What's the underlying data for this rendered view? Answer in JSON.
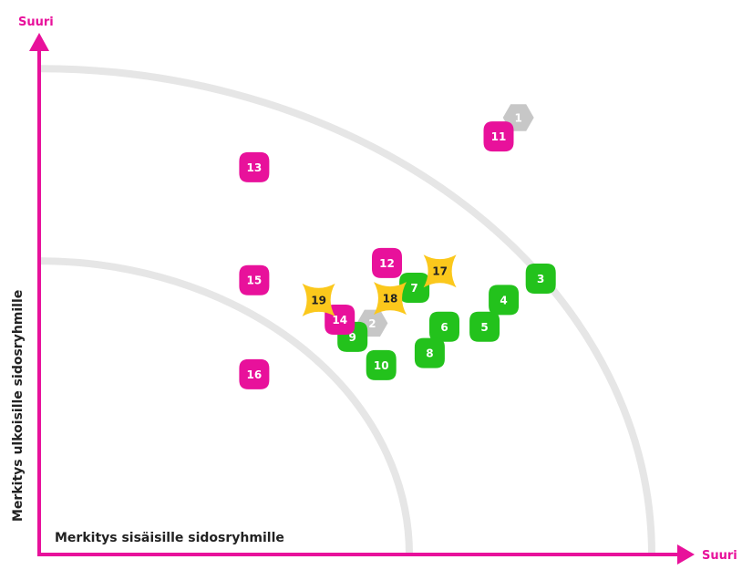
{
  "colors": {
    "axis": "#e8119b",
    "arc": "#e6e6e6",
    "magenta": "#e8119b",
    "green": "#23c21c",
    "gray": "#c7c7c7",
    "yellow": "#fbc81c",
    "text_dark": "#222222",
    "text_light": "#ffffff"
  },
  "chart_data": {
    "type": "scatter",
    "xlabel": "Merkitys sisäisille sidosryhmille",
    "ylabel": "Merkitys ulkoisille sidosryhmille",
    "x_end_label": "Suuri",
    "y_end_label": "Suuri",
    "xlim": [
      0,
      100
    ],
    "ylim": [
      0,
      100
    ],
    "arcs": [
      58,
      96
    ],
    "grid": false,
    "legend": "none",
    "points": [
      {
        "label": "1",
        "x": 75.1,
        "y": 86.3,
        "color": "gray",
        "shape": "hexagon"
      },
      {
        "label": "2",
        "x": 52.2,
        "y": 45.7,
        "color": "gray",
        "shape": "hexagon"
      },
      {
        "label": "3",
        "x": 78.6,
        "y": 54.5,
        "color": "green",
        "shape": "rounded"
      },
      {
        "label": "4",
        "x": 72.8,
        "y": 50.3,
        "color": "green",
        "shape": "rounded"
      },
      {
        "label": "5",
        "x": 69.8,
        "y": 45.0,
        "color": "green",
        "shape": "rounded"
      },
      {
        "label": "6",
        "x": 63.5,
        "y": 45.0,
        "color": "green",
        "shape": "rounded"
      },
      {
        "label": "7",
        "x": 58.8,
        "y": 52.7,
        "color": "green",
        "shape": "rounded"
      },
      {
        "label": "8",
        "x": 61.2,
        "y": 39.8,
        "color": "green",
        "shape": "rounded"
      },
      {
        "label": "9",
        "x": 49.1,
        "y": 43.0,
        "color": "green",
        "shape": "rounded"
      },
      {
        "label": "10",
        "x": 53.6,
        "y": 37.4,
        "color": "green",
        "shape": "rounded"
      },
      {
        "label": "11",
        "x": 72.0,
        "y": 82.6,
        "color": "magenta",
        "shape": "rounded"
      },
      {
        "label": "12",
        "x": 54.5,
        "y": 57.6,
        "color": "magenta",
        "shape": "rounded"
      },
      {
        "label": "13",
        "x": 33.7,
        "y": 76.5,
        "color": "magenta",
        "shape": "rounded"
      },
      {
        "label": "14",
        "x": 47.1,
        "y": 46.4,
        "color": "magenta",
        "shape": "rounded"
      },
      {
        "label": "15",
        "x": 33.7,
        "y": 54.2,
        "color": "magenta",
        "shape": "rounded"
      },
      {
        "label": "16",
        "x": 33.7,
        "y": 35.6,
        "color": "magenta",
        "shape": "rounded"
      },
      {
        "label": "17",
        "x": 62.8,
        "y": 56.0,
        "color": "yellow",
        "shape": "star"
      },
      {
        "label": "18",
        "x": 55.0,
        "y": 50.6,
        "color": "yellow",
        "shape": "star"
      },
      {
        "label": "19",
        "x": 43.8,
        "y": 50.3,
        "color": "yellow",
        "shape": "star"
      }
    ]
  }
}
